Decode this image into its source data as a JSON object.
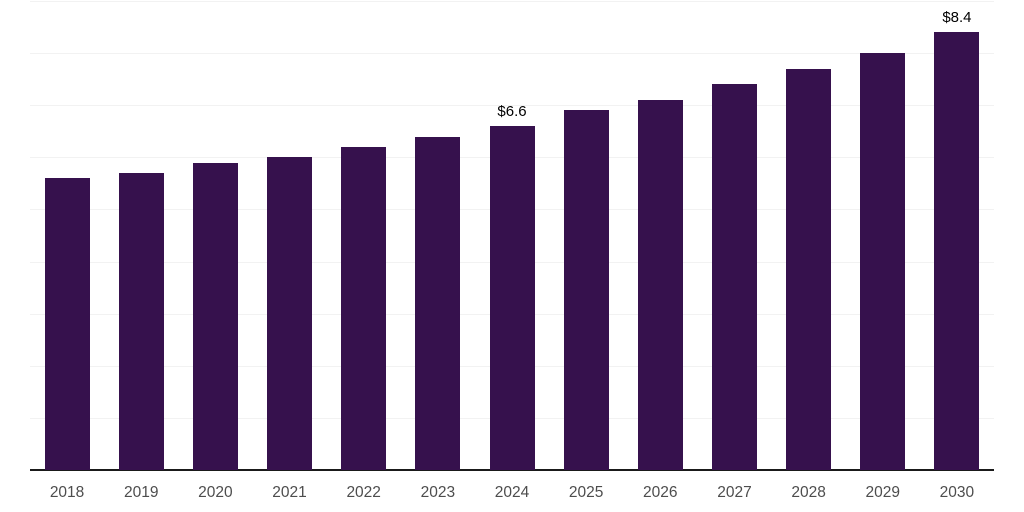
{
  "chart_data": {
    "type": "bar",
    "title": "",
    "xlabel": "",
    "ylabel": "",
    "categories": [
      "2018",
      "2019",
      "2020",
      "2021",
      "2022",
      "2023",
      "2024",
      "2025",
      "2026",
      "2027",
      "2028",
      "2029",
      "2030"
    ],
    "values": [
      5.6,
      5.7,
      5.9,
      6.0,
      6.2,
      6.4,
      6.6,
      6.9,
      7.1,
      7.4,
      7.7,
      8.0,
      8.4
    ],
    "annotations": [
      {
        "category": "2024",
        "text": "$6.6"
      },
      {
        "category": "2030",
        "text": "$8.4"
      }
    ],
    "ylim": [
      0,
      9
    ],
    "gridline_step": 1,
    "grid": "horizontal",
    "legend": "none",
    "colors": {
      "bar": "#36114D",
      "axis": "#1a1a1a",
      "gridline": "#f2f2f2",
      "tick_label": "#4d4d4d",
      "annotation": "#000000",
      "background": "#ffffff"
    }
  }
}
